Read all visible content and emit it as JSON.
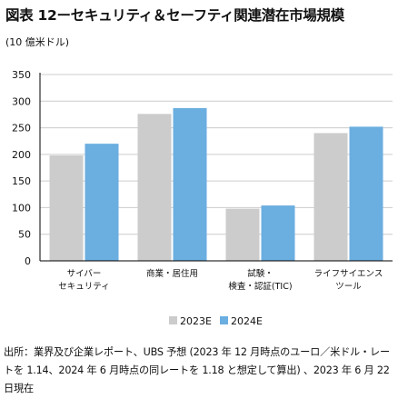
{
  "header": {
    "title": "図表 12ーセキュリティ＆セーフティ関連潜在市場規模",
    "unit_label": "(10 億米ドル)"
  },
  "footer": {
    "source": "出所：業界及び企業レポート、UBS 予想 (2023 年 12 月時点のユーロ／米ドル・レートを 1.14、2024 年 6 月時点の同レートを 1.18 と想定して算出) 、2023 年 6 月 22 日現在"
  },
  "colors": {
    "series_2023E": "#cccccc",
    "series_2024E": "#6baee0",
    "axis": "#000000",
    "grid": "#cccccc"
  },
  "chart_data": {
    "type": "bar",
    "categories": [
      [
        "サイバー",
        "セキュリティ"
      ],
      [
        "商業・居住用"
      ],
      [
        "試験・",
        "検査・認証(TIC)"
      ],
      [
        "ライフサイエンス",
        "ツール"
      ]
    ],
    "series": [
      {
        "name": "2023E",
        "values": [
          198,
          276,
          98,
          240
        ]
      },
      {
        "name": "2024E",
        "values": [
          220,
          287,
          104,
          252
        ]
      }
    ],
    "yticks": [
      0,
      50,
      100,
      150,
      200,
      250,
      300,
      350
    ],
    "ylim": [
      0,
      350
    ],
    "grid": true,
    "legend": "bottom"
  }
}
